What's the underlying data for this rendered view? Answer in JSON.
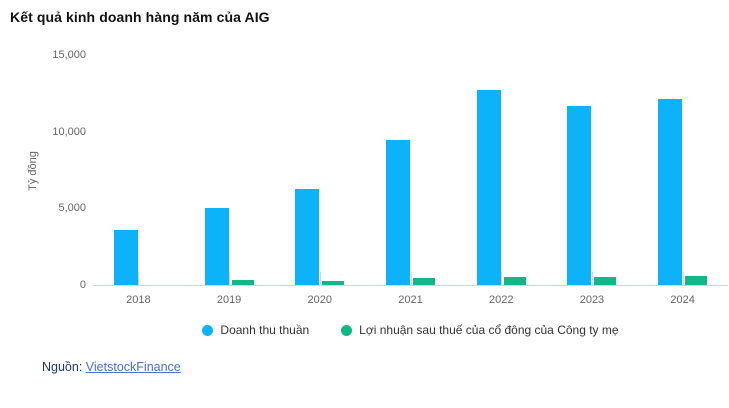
{
  "title": "Kết quả kinh doanh hàng năm của AIG",
  "chart_data": {
    "type": "bar",
    "title": "Kết quả kinh doanh hàng năm của AIG",
    "xlabel": "",
    "ylabel": "Tỷ đồng",
    "categories": [
      "2018",
      "2019",
      "2020",
      "2021",
      "2022",
      "2023",
      "2024"
    ],
    "series": [
      {
        "name": "Doanh thu thuần",
        "color": "#0db3f9",
        "values": [
          3600,
          5000,
          6250,
          9450,
          12700,
          11650,
          12150
        ]
      },
      {
        "name": "Lợi nhuận sau thuế của cổ đông của Công ty mẹ",
        "color": "#12b789",
        "values": [
          0,
          330,
          290,
          470,
          520,
          540,
          580
        ]
      }
    ],
    "ylim": [
      0,
      15000
    ],
    "y_ticks": [
      0,
      5000,
      10000,
      15000
    ],
    "y_tick_labels": [
      "0",
      "5,000",
      "10,000",
      "15,000"
    ],
    "grid": false,
    "legend_position": "bottom",
    "axis_color": "#ccd6eb",
    "tick_label_color": "#666666"
  },
  "source": {
    "label": "Nguồn:",
    "link_text": "VietstockFinance"
  }
}
